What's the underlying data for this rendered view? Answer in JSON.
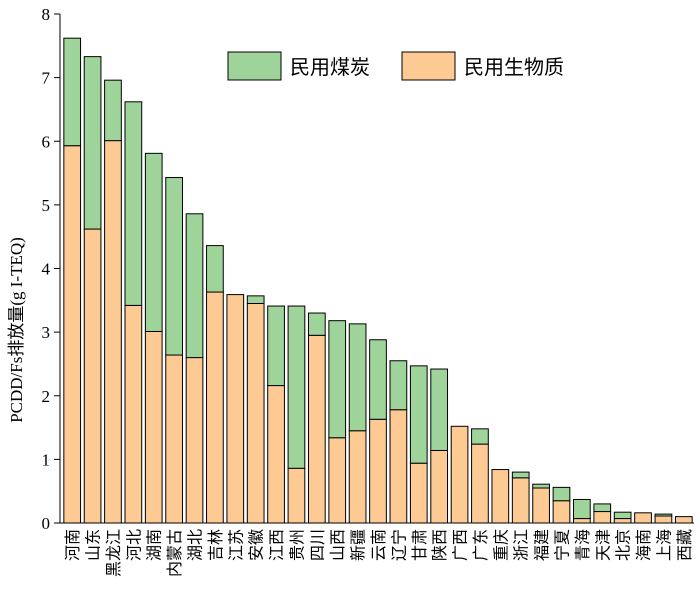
{
  "chart_data": {
    "type": "bar",
    "stacked": true,
    "ylabel": "PCDD/Fs排放量(g I-TEQ)",
    "ylim": [
      0,
      8
    ],
    "yticks": [
      0,
      1,
      2,
      3,
      4,
      5,
      6,
      7,
      8
    ],
    "grid": false,
    "legend_position": "top-right",
    "categories": [
      "河南",
      "山东",
      "黑龙江",
      "河北",
      "湖南",
      "内蒙古",
      "湖北",
      "吉林",
      "江苏",
      "安徽",
      "江西",
      "贵州",
      "四川",
      "山西",
      "新疆",
      "云南",
      "辽宁",
      "甘肃",
      "陕西",
      "广西",
      "广东",
      "重庆",
      "浙江",
      "福建",
      "宁夏",
      "青海",
      "天津",
      "北京",
      "海南",
      "上海",
      "西藏"
    ],
    "series": [
      {
        "name": "民用生物质",
        "color": "#fdca93",
        "values": [
          5.93,
          4.62,
          6.01,
          3.42,
          3.01,
          2.64,
          2.6,
          3.63,
          3.59,
          3.45,
          2.16,
          0.86,
          2.95,
          1.34,
          1.45,
          1.63,
          1.78,
          0.94,
          1.14,
          1.52,
          1.24,
          0.84,
          0.71,
          0.55,
          0.35,
          0.07,
          0.18,
          0.07,
          0.16,
          0.11,
          0.1
        ]
      },
      {
        "name": "民用煤炭",
        "color": "#9ed49a",
        "values": [
          1.69,
          2.71,
          0.95,
          3.2,
          2.8,
          2.79,
          2.26,
          0.73,
          0.0,
          0.12,
          1.25,
          2.55,
          0.35,
          1.84,
          1.68,
          1.25,
          0.77,
          1.53,
          1.28,
          0.0,
          0.24,
          0.0,
          0.09,
          0.06,
          0.21,
          0.3,
          0.12,
          0.1,
          0.0,
          0.03,
          0.0
        ]
      }
    ]
  }
}
